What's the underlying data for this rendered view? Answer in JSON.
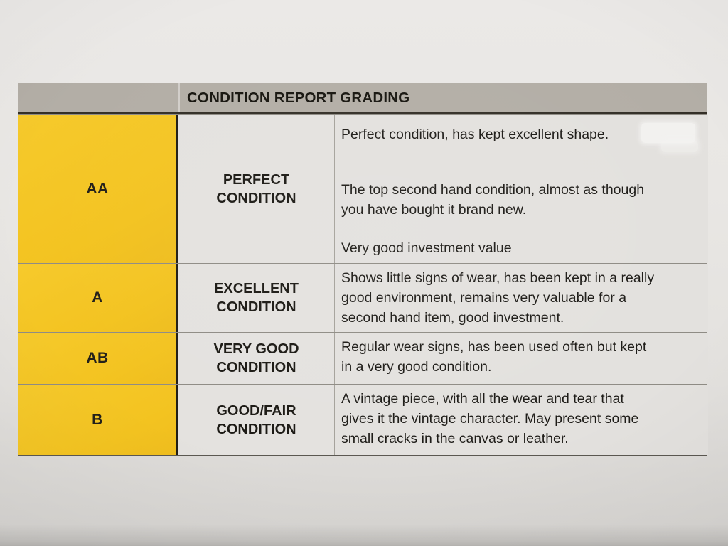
{
  "colors": {
    "grade_column_yellow": "#F6CA2C",
    "header_band_gray": "#B3AEA6",
    "text_black": "#1D1B17"
  },
  "table": {
    "title": "CONDITION REPORT GRADING",
    "rows": [
      {
        "grade": "AA",
        "label": "PERFECT\nCONDITION",
        "paragraphs": [
          "Perfect condition, has kept excellent shape.",
          "The top second hand condition, almost as though\nyou have bought it brand new.",
          "Very good investment value"
        ]
      },
      {
        "grade": "A",
        "label": "EXCELLENT\nCONDITION",
        "paragraphs": [
          "Shows little signs of wear, has been kept in a really\ngood environment, remains very valuable for a\nsecond hand item, good investment."
        ]
      },
      {
        "grade": "AB",
        "label": "VERY GOOD\nCONDITION",
        "paragraphs": [
          "Regular wear signs, has been used often but kept\nin a very good condition."
        ]
      },
      {
        "grade": "B",
        "label": "GOOD/FAIR\nCONDITION",
        "paragraphs": [
          "A vintage piece, with all the wear and tear that\ngives it the vintage character. May present some\nsmall cracks in the canvas or leather."
        ]
      }
    ]
  }
}
